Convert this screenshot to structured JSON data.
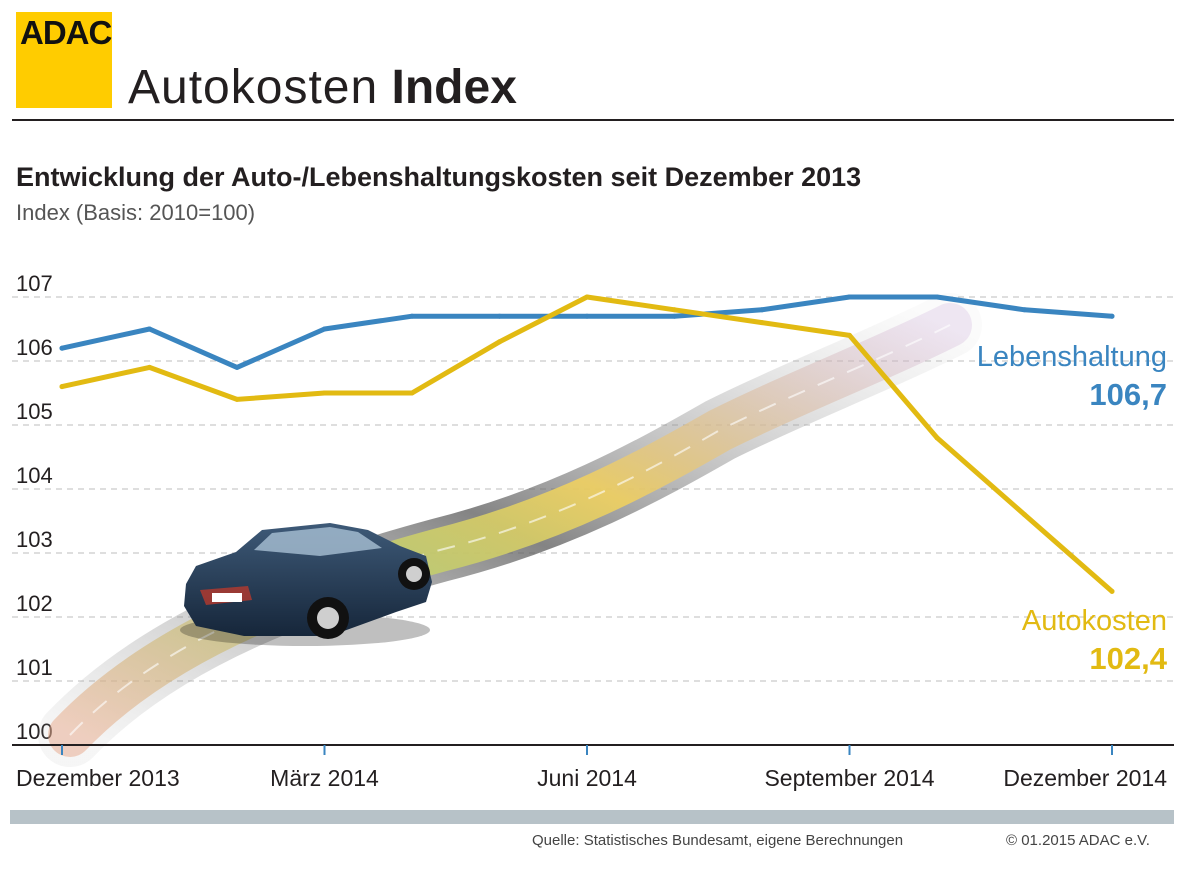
{
  "header": {
    "logo": "ADAC",
    "title_light": "Autokosten",
    "title_bold": "Index"
  },
  "chart_data": {
    "type": "line",
    "title": "Entwicklung der Auto-/Lebenshaltungskosten seit Dezember 2013",
    "subtitle": "Index (Basis: 2010=100)",
    "ylim": [
      100,
      107
    ],
    "yticks": [
      "100",
      "101",
      "102",
      "103",
      "104",
      "105",
      "106",
      "107"
    ],
    "x": [
      0,
      1,
      2,
      3,
      4,
      5,
      6,
      7,
      8,
      9,
      10,
      11,
      12
    ],
    "x_tick_positions": [
      0,
      3,
      6,
      9,
      12
    ],
    "x_tick_labels": [
      "Dezember 2013",
      "März 2014",
      "Juni 2014",
      "September 2014",
      "Dezember 2014"
    ],
    "grid": true,
    "series": [
      {
        "name": "Lebenshaltung",
        "color": "#3a85c0",
        "values": [
          106.2,
          106.5,
          105.9,
          106.5,
          106.7,
          106.7,
          106.7,
          106.7,
          106.8,
          107.0,
          107.0,
          106.8,
          106.7
        ],
        "end_label": "Lebenshaltung",
        "end_value": "106,7"
      },
      {
        "name": "Autokosten",
        "color": "#e2ba12",
        "values": [
          105.6,
          105.9,
          105.4,
          105.5,
          105.5,
          106.3,
          107.0,
          106.8,
          106.6,
          106.4,
          104.8,
          103.6,
          102.4
        ],
        "end_label": "Autokosten",
        "end_value": "102,4"
      }
    ]
  },
  "footer": {
    "source": "Quelle: Statistisches Bundesamt, eigene Berechnungen",
    "copyright": "© 01.2015  ADAC e.V."
  }
}
